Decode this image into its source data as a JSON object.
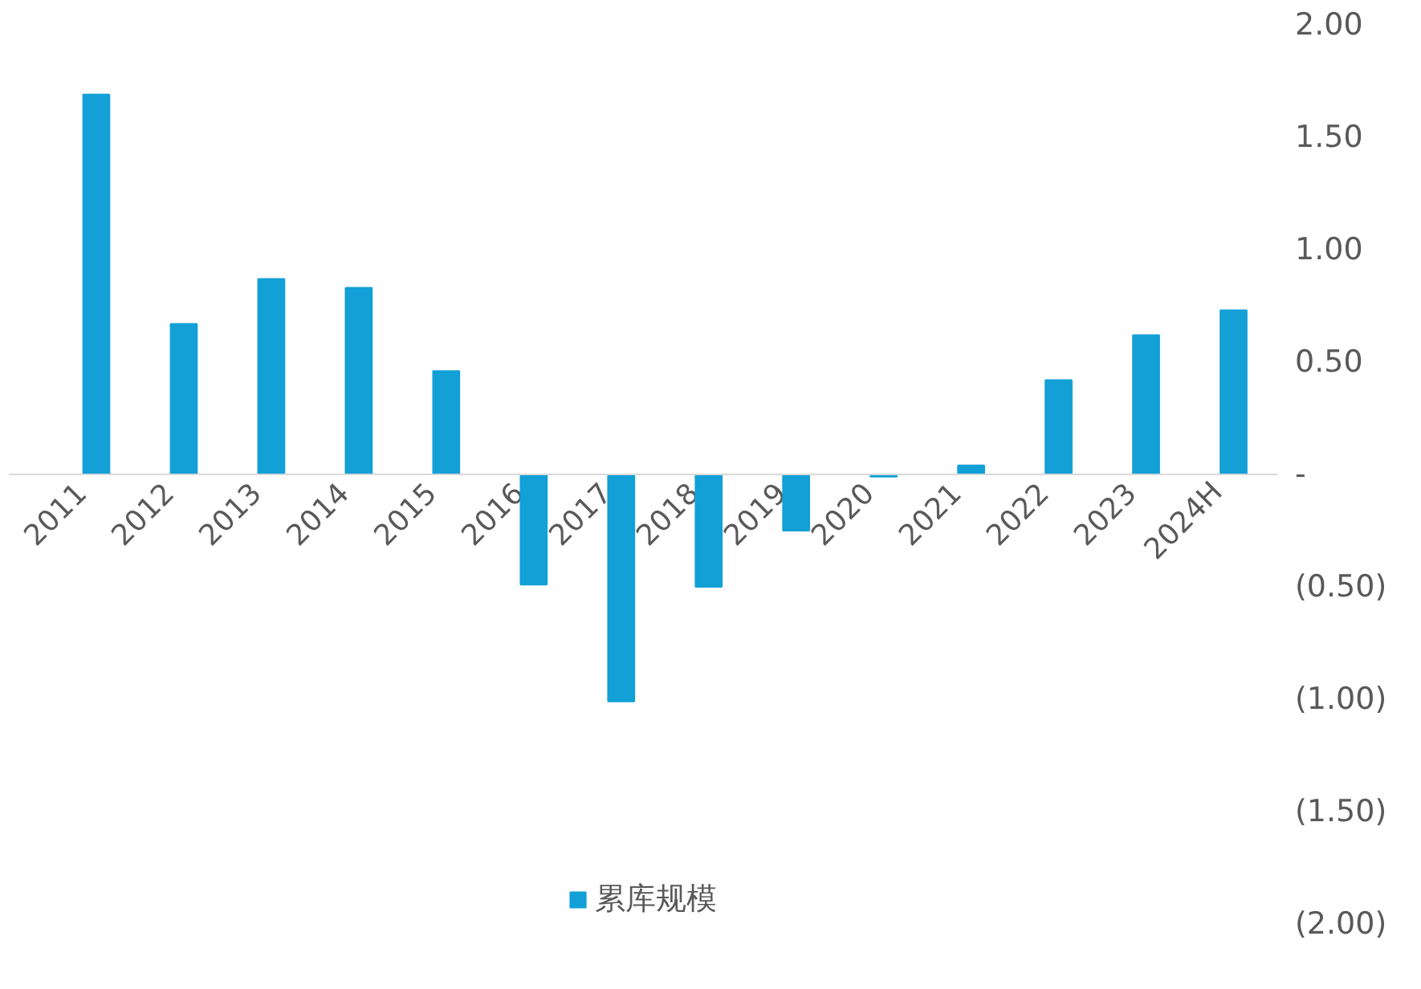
{
  "chart_data": {
    "type": "bar",
    "categories": [
      "2011",
      "2012",
      "2013",
      "2014",
      "2015",
      "2016",
      "2017",
      "2018",
      "2019",
      "2020",
      "2021",
      "2022",
      "2023",
      "2024H"
    ],
    "series": [
      {
        "name": "累库规模",
        "color": "#12a0d7",
        "values": [
          1.69,
          0.67,
          0.87,
          0.83,
          0.46,
          -0.49,
          -1.01,
          -0.5,
          -0.25,
          -0.01,
          0.04,
          0.42,
          0.62,
          0.73
        ]
      }
    ],
    "ylim": [
      -2,
      2
    ],
    "yticks": [
      {
        "value": 2,
        "label": "2.00"
      },
      {
        "value": 1.5,
        "label": "1.50"
      },
      {
        "value": 1,
        "label": "1.00"
      },
      {
        "value": 0.5,
        "label": "0.50"
      },
      {
        "value": 0,
        "label": "-"
      },
      {
        "value": -0.5,
        "label": "(0.50)"
      },
      {
        "value": -1,
        "label": "(1.00)"
      },
      {
        "value": -1.5,
        "label": "(1.50)"
      },
      {
        "value": -2,
        "label": "(2.00)"
      }
    ],
    "grid": false,
    "legend": "bottom"
  }
}
